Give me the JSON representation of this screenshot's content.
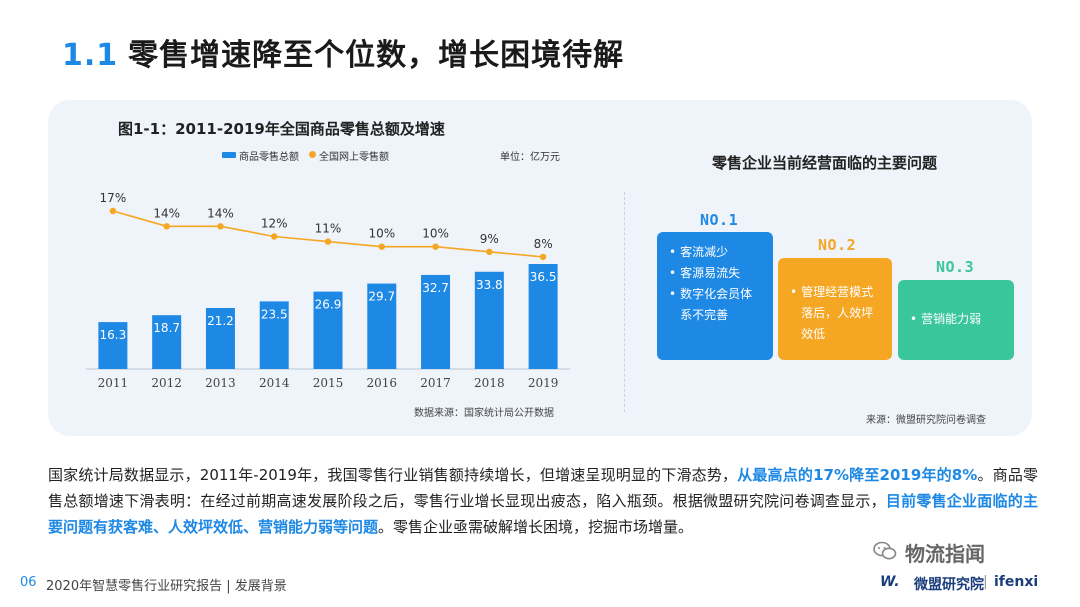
{
  "header": {
    "section_num": "1.1",
    "title": "零售增速降至个位数，增长困境待解"
  },
  "chart_data": {
    "type": "bar",
    "title": "图1-1：2011-2019年全国商品零售总额及增速",
    "unit": "单位：亿万元",
    "source": "数据来源：国家统计局公开数据",
    "legend_position": "top",
    "categories": [
      "2011",
      "2012",
      "2013",
      "2014",
      "2015",
      "2016",
      "2017",
      "2018",
      "2019"
    ],
    "series": [
      {
        "name": "商品零售总额",
        "type": "bar",
        "color": "#1e88e5",
        "values": [
          16.3,
          18.7,
          21.2,
          23.5,
          26.9,
          29.7,
          32.7,
          33.8,
          36.5
        ],
        "labels": [
          "16.3",
          "18.7",
          "21.2",
          "23.5",
          "26.9",
          "29.7",
          "32.7",
          "33.8",
          "36.5"
        ]
      },
      {
        "name": "全国网上零售额",
        "type": "line",
        "color": "#f5a623",
        "values": [
          17,
          14,
          14,
          12,
          11,
          10,
          10,
          9,
          8
        ],
        "labels": [
          "17%",
          "14%",
          "14%",
          "12%",
          "11%",
          "10%",
          "10%",
          "9%",
          "8%"
        ]
      }
    ]
  },
  "problems": {
    "title": "零售企业当前经营面临的主要问题",
    "source": "来源：微盟研究院问卷调查",
    "items": [
      {
        "rank": "NO.1",
        "color": "#1e88e5",
        "points": [
          "客流减少",
          "客源易流失",
          "数字化会员体系不完善"
        ]
      },
      {
        "rank": "NO.2",
        "color": "#f5a623",
        "points": [
          "管理经营模式落后，人效坪效低"
        ]
      },
      {
        "rank": "NO.3",
        "color": "#3ac69b",
        "points": [
          "营销能力弱"
        ]
      }
    ]
  },
  "body": {
    "p1": "国家统计局数据显示，2011年-2019年，我国零售行业销售额持续增长，但增速呈现明显的下滑态势，",
    "h1": "从最高点的17%降至2019年的8%",
    "p2": "。商品零售总额增速下滑表明：在经过前期高速发展阶段之后，零售行业增长显现出疲态，陷入瓶颈。根据微盟研究院问卷调查显示，",
    "h2": "目前零售企业面临的主要问题有获客难、人效坪效低、营销能力弱等问题",
    "p3": "。零售企业亟需破解增长困境，挖掘市场增量。"
  },
  "footer": {
    "page_num": "06",
    "report": "2020年智慧零售行业研究报告 | 发展背景",
    "watermark": "物流指闻",
    "logo_mark": "W.",
    "logo_brand": "微盟研究院",
    "logo_sep": "|",
    "logo_ifenxi": "ifenxi"
  }
}
